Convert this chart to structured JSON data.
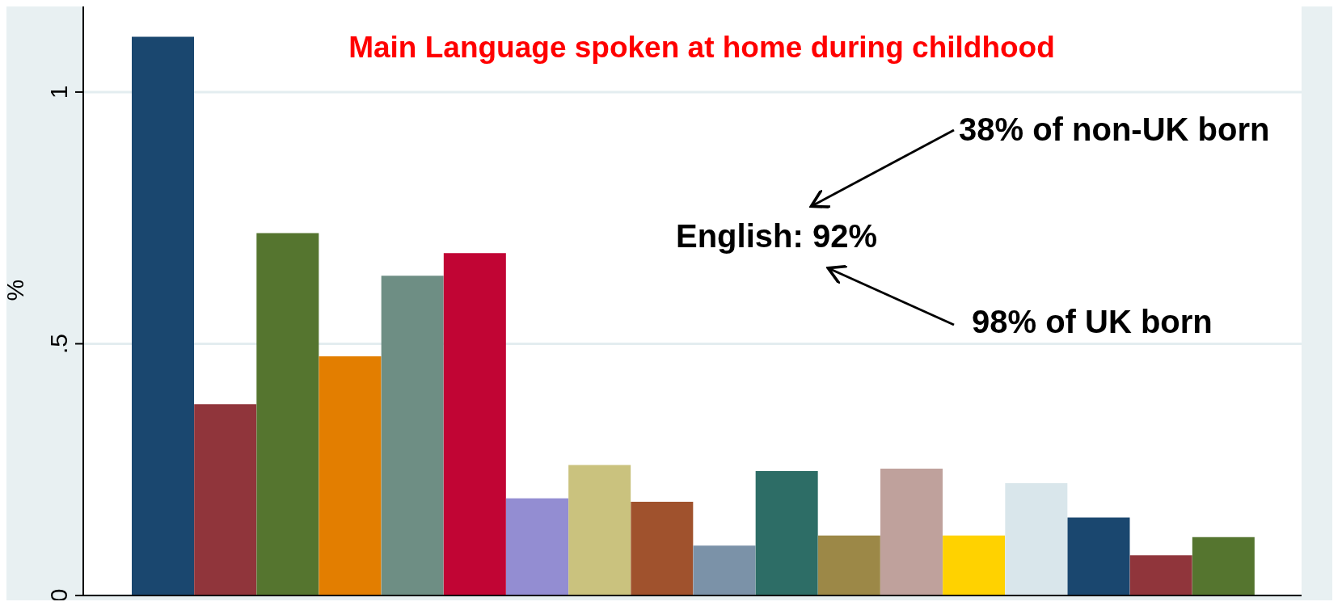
{
  "chart_data": {
    "type": "bar",
    "title": "Main Language spoken at home during childhood",
    "ylabel": "%",
    "categories": [
      null,
      null,
      null,
      null,
      null,
      null,
      null,
      null,
      null,
      null,
      null,
      null,
      null,
      null,
      null,
      null,
      null,
      null
    ],
    "values": [
      1.11,
      0.38,
      0.72,
      0.475,
      0.635,
      0.68,
      0.193,
      0.259,
      0.186,
      0.099,
      0.247,
      0.119,
      0.252,
      0.119,
      0.223,
      0.155,
      0.08,
      0.116
    ],
    "colors": [
      "#1a476f",
      "#90353b",
      "#55752f",
      "#e37e00",
      "#6e8e84",
      "#c10534",
      "#938dd2",
      "#cac27e",
      "#a0522d",
      "#7b92a8",
      "#2d6d66",
      "#9c8847",
      "#bfa19c",
      "#ffd200",
      "#d9e6eb",
      "#1a476f",
      "#90353b",
      "#55752f"
    ],
    "ylim": [
      0,
      1.17
    ],
    "yticks": [
      {
        "value": 0,
        "label": "0"
      },
      {
        "value": 0.5,
        "label": ".5"
      },
      {
        "value": 1,
        "label": "1"
      }
    ],
    "grid": "y",
    "legend": false,
    "annotations": [
      "English: 92%",
      "38% of non-UK born",
      "98% of UK born"
    ]
  }
}
